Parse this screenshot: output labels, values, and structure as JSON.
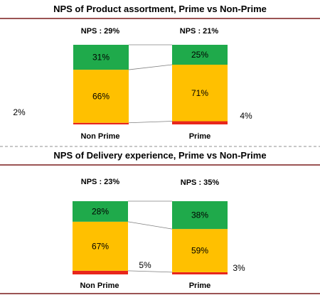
{
  "colors": {
    "promoter": "#1faa4b",
    "passive": "#ffc000",
    "detractor": "#e8261c",
    "rule": "#7a1c1c",
    "connector": "#808080"
  },
  "chart_data": [
    {
      "type": "bar",
      "stacked": true,
      "title": "NPS of Product assortment, Prime vs Non-Prime",
      "categories": [
        "Non Prime",
        "Prime"
      ],
      "nps_labels": [
        "NPS :  29%",
        "NPS :  21%"
      ],
      "series": [
        {
          "key": "detractor",
          "values": [
            2,
            4
          ],
          "labels": [
            "2%",
            "4%"
          ]
        },
        {
          "key": "passive",
          "values": [
            66,
            71
          ],
          "labels": [
            "66%",
            "71%"
          ]
        },
        {
          "key": "promoter",
          "values": [
            31,
            25
          ],
          "labels": [
            "31%",
            "25%"
          ]
        }
      ],
      "ylim": [
        0,
        100
      ],
      "grid": false,
      "legend": "none"
    },
    {
      "type": "bar",
      "stacked": true,
      "title": "NPS of Delivery experience, Prime vs Non-Prime",
      "categories": [
        "Non Prime",
        "Prime"
      ],
      "nps_labels": [
        "NPS :  23%",
        "NPS :  35%"
      ],
      "series": [
        {
          "key": "detractor",
          "values": [
            5,
            3
          ],
          "labels": [
            "5%",
            "3%"
          ]
        },
        {
          "key": "passive",
          "values": [
            67,
            59
          ],
          "labels": [
            "67%",
            "59%"
          ]
        },
        {
          "key": "promoter",
          "values": [
            28,
            38
          ],
          "labels": [
            "28%",
            "38%"
          ]
        }
      ],
      "ylim": [
        0,
        100
      ],
      "grid": false,
      "legend": "none"
    }
  ]
}
